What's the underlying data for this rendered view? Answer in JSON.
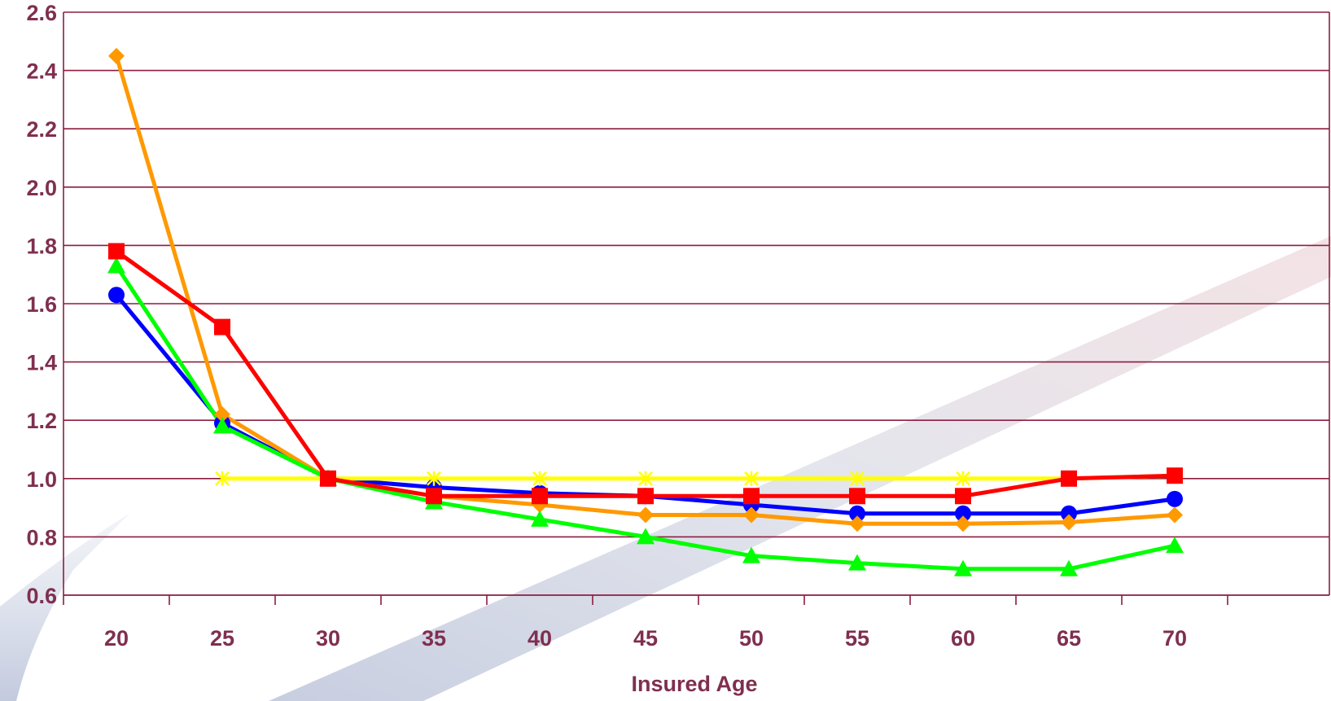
{
  "chart_data": {
    "type": "line",
    "title": "",
    "xlabel": "Insured Age",
    "ylabel": "",
    "categories": [
      "20",
      "25",
      "30",
      "35",
      "40",
      "45",
      "50",
      "55",
      "60",
      "65",
      "70"
    ],
    "ylim": [
      0.6,
      2.6
    ],
    "yticks": [
      "0.6",
      "0.8",
      "1.0",
      "1.2",
      "1.4",
      "1.6",
      "1.8",
      "2.0",
      "2.2",
      "2.4",
      "2.6"
    ],
    "grid": "horizontal",
    "legend": "none",
    "series": [
      {
        "color": "#0000ff",
        "marker": "circle",
        "values": [
          1.63,
          1.19,
          1.0,
          0.97,
          0.95,
          0.94,
          0.91,
          0.88,
          0.88,
          0.88,
          0.93
        ]
      },
      {
        "color": "#ff9900",
        "marker": "diamond",
        "values": [
          2.45,
          1.22,
          1.0,
          0.94,
          0.91,
          0.875,
          0.875,
          0.845,
          0.845,
          0.85,
          0.875
        ]
      },
      {
        "color": "#00ff00",
        "marker": "triangle",
        "values": [
          1.73,
          1.18,
          1.0,
          0.92,
          0.86,
          0.8,
          0.735,
          0.71,
          0.69,
          0.69,
          0.77
        ]
      },
      {
        "color": "#ffff00",
        "marker": "star",
        "values": [
          null,
          1.0,
          1.0,
          1.0,
          1.0,
          1.0,
          1.0,
          1.0,
          1.0,
          1.0,
          1.01
        ]
      },
      {
        "color": "#ff0000",
        "marker": "square",
        "values": [
          1.78,
          1.52,
          1.0,
          0.94,
          0.94,
          0.94,
          0.94,
          0.94,
          0.94,
          1.0,
          1.01
        ]
      }
    ],
    "colors": {
      "axis_text": "#7f2f4f",
      "grid": "#8b1e3f",
      "background": "#ffffff"
    }
  }
}
